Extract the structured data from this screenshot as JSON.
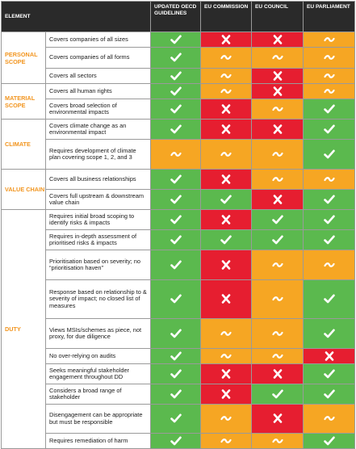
{
  "header": {
    "element": "ELEMENT",
    "cols": [
      "UPDATED OECD GUIDELINES",
      "EU COMMISSION",
      "EU COUNCIL",
      "EU PARLIAMENT"
    ]
  },
  "colors": {
    "yes": "#5bb94e",
    "no": "#e61e30",
    "partial": "#f6a623",
    "category": "#f2951f"
  },
  "legend_symbols": {
    "yes": "check-icon",
    "no": "cross-icon",
    "partial": "tilde-icon"
  },
  "categories": [
    "PERSONAL SCOPE",
    "MATERIAL SCOPE",
    "CLIMATE",
    "VALUE CHAIN",
    "DUTY"
  ],
  "rows": [
    {
      "label": "Covers companies of all sizes",
      "v": [
        "yes",
        "no",
        "no",
        "partial"
      ]
    },
    {
      "label": "Covers companies of all forms",
      "v": [
        "yes",
        "partial",
        "partial",
        "partial"
      ]
    },
    {
      "label": "Covers all sectors",
      "v": [
        "yes",
        "partial",
        "no",
        "partial"
      ]
    },
    {
      "label": "Covers all human rights",
      "v": [
        "yes",
        "partial",
        "no",
        "partial"
      ]
    },
    {
      "label": "Covers broad selection of environmental impacts",
      "v": [
        "yes",
        "no",
        "partial",
        "yes"
      ]
    },
    {
      "label": "Covers climate change as an environmental impact",
      "v": [
        "yes",
        "no",
        "no",
        "yes"
      ]
    },
    {
      "label": "Requires development of climate plan covering scope 1, 2, and 3",
      "v": [
        "partial",
        "partial",
        "partial",
        "yes"
      ]
    },
    {
      "label": "Covers all business relationships",
      "v": [
        "yes",
        "no",
        "partial",
        "partial"
      ]
    },
    {
      "label": "Covers full upstream & downstream value chain",
      "v": [
        "yes",
        "yes",
        "no",
        "yes"
      ]
    },
    {
      "label": "Requires initial broad scoping to identify risks & impacts",
      "v": [
        "yes",
        "no",
        "yes",
        "yes"
      ]
    },
    {
      "label": "Requires in-depth assessment of prioritised risks & impacts",
      "v": [
        "yes",
        "yes",
        "yes",
        "yes"
      ]
    },
    {
      "label": "Prioritisation based on severity; no “prioritisation haven”",
      "v": [
        "yes",
        "no",
        "partial",
        "partial"
      ]
    },
    {
      "label": "Response based on relationship to & severity of impact; no closed list of measures",
      "v": [
        "yes",
        "no",
        "partial",
        "yes"
      ]
    },
    {
      "label": "Views MSIs/schemes as piece, not proxy, for due diligence",
      "v": [
        "yes",
        "partial",
        "partial",
        "yes"
      ]
    },
    {
      "label": "No over-relying on audits",
      "v": [
        "yes",
        "partial",
        "partial",
        "no"
      ]
    },
    {
      "label": "Seeks meaningful stakeholder engagement throughout DD",
      "v": [
        "yes",
        "no",
        "no",
        "yes"
      ]
    },
    {
      "label": "Considers a broad range of stakeholder",
      "v": [
        "yes",
        "no",
        "yes",
        "yes"
      ]
    },
    {
      "label": "Disengagement can be appropriate but must be responsible",
      "v": [
        "yes",
        "partial",
        "no",
        "partial"
      ]
    },
    {
      "label": "Requires remediation of harm",
      "v": [
        "yes",
        "partial",
        "partial",
        "yes"
      ]
    }
  ]
}
